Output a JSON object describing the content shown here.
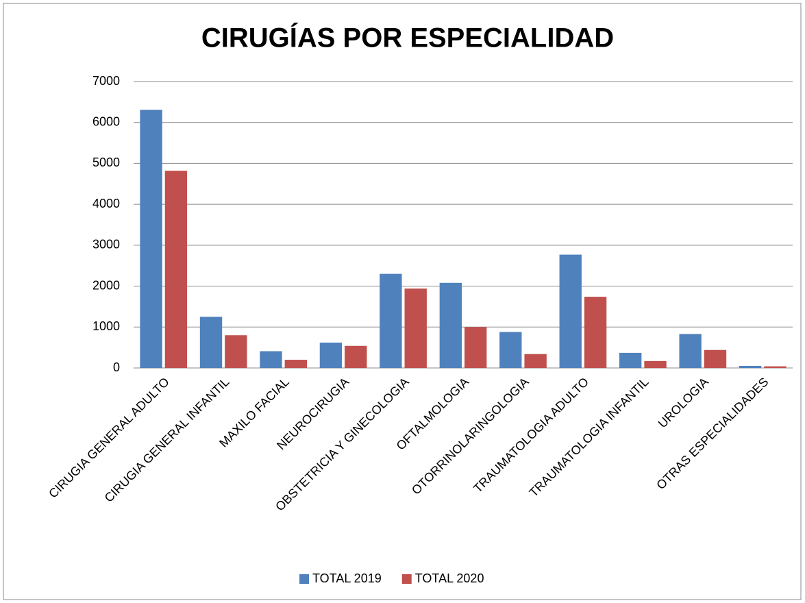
{
  "chart_data": {
    "type": "bar",
    "title": "CIRUGÍAS POR ESPECIALIDAD",
    "categories": [
      "CIRUGIA GENERAL ADULTO",
      "CIRUGIA GENERAL INFANTIL",
      "MAXILO FACIAL",
      "NEUROCIRUGIA",
      "OBSTETRICIA Y GINECOLOGIA",
      "OFTALMOLOGIA",
      "OTORRINOLARINGOLOGIA",
      "TRAUMATOLOGIA ADULTO",
      "TRAUMATOLOGIA INFANTIL",
      "UROLOGIA",
      "OTRAS ESPECIALIDADES"
    ],
    "series": [
      {
        "name": "TOTAL 2019",
        "color": "#4f81bd",
        "values": [
          6310,
          1250,
          410,
          620,
          2300,
          2080,
          880,
          2770,
          370,
          830,
          50
        ]
      },
      {
        "name": "TOTAL 2020",
        "color": "#c0504d",
        "values": [
          4820,
          800,
          200,
          540,
          1940,
          1000,
          340,
          1740,
          170,
          440,
          40
        ]
      }
    ],
    "ylim": [
      0,
      7000
    ],
    "yticks": [
      0,
      1000,
      2000,
      3000,
      4000,
      5000,
      6000,
      7000
    ],
    "grid": true,
    "legend": "bottom"
  }
}
